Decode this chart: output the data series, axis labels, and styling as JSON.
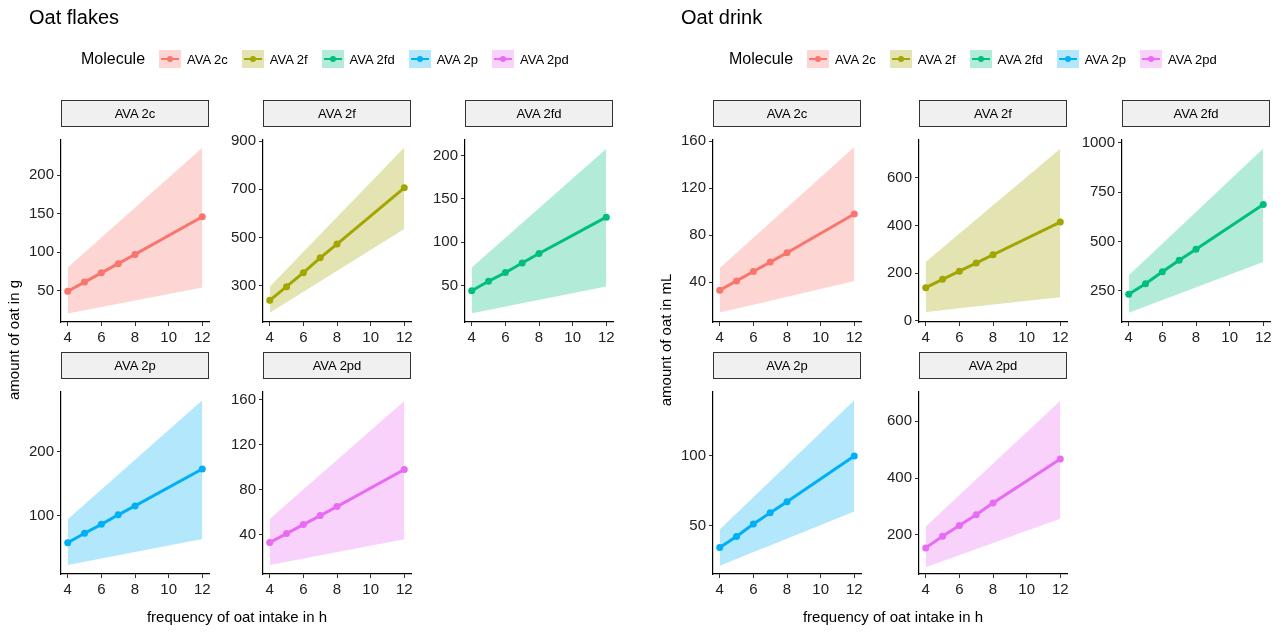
{
  "chart_data": [
    {
      "type": "other",
      "title": "Oat flakes",
      "legend_title": "Molecule",
      "legend": "top left",
      "xlabel": "frequency of oat intake in h",
      "ylabel": "amount of oat in g",
      "series": [
        {
          "name": "AVA 2c",
          "color": "#f8766d"
        },
        {
          "name": "AVA 2f",
          "color": "#a3a500"
        },
        {
          "name": "AVA 2fd",
          "color": "#00bf7d"
        },
        {
          "name": "AVA 2p",
          "color": "#00b0f6"
        },
        {
          "name": "AVA 2pd",
          "color": "#e76bf3"
        }
      ]
    },
    {
      "type": "line",
      "title": "AVA 2c",
      "x": [
        4,
        5,
        6,
        7,
        8,
        12
      ],
      "xlim": [
        3.6,
        12.4
      ],
      "xticks": [
        4,
        6,
        8,
        10,
        12
      ],
      "ylim": [
        9,
        246
      ],
      "yticks": [
        50,
        100,
        150,
        200
      ],
      "marker": "circle",
      "legend": false,
      "series": [
        {
          "color": "#f8766d",
          "values": [
            49,
            61,
            73,
            85,
            97,
            146
          ],
          "lower": [
            20,
            null,
            null,
            null,
            null,
            54
          ],
          "upper": [
            80,
            null,
            null,
            null,
            null,
            236
          ]
        }
      ]
    },
    {
      "type": "line",
      "title": "AVA 2f",
      "x": [
        4,
        5,
        6,
        7,
        8,
        12
      ],
      "xlim": [
        3.6,
        12.4
      ],
      "xticks": [
        4,
        6,
        8,
        10,
        12
      ],
      "ylim": [
        148,
        905
      ],
      "yticks": [
        300,
        500,
        700,
        900
      ],
      "marker": "circle",
      "legend": false,
      "series": [
        {
          "color": "#a3a500",
          "values": [
            238,
            295,
            353,
            415,
            472,
            706
          ],
          "lower": [
            186,
            null,
            null,
            null,
            null,
            535
          ],
          "upper": [
            295,
            null,
            null,
            null,
            null,
            874
          ]
        }
      ]
    },
    {
      "type": "line",
      "title": "AVA 2fd",
      "x": [
        4,
        5,
        6,
        7,
        8,
        12
      ],
      "xlim": [
        3.6,
        12.4
      ],
      "xticks": [
        4,
        6,
        8,
        10,
        12
      ],
      "ylim": [
        8,
        218
      ],
      "yticks": [
        50,
        100,
        150,
        200
      ],
      "marker": "circle",
      "legend": false,
      "series": [
        {
          "color": "#00bf7d",
          "values": [
            44,
            55,
            65,
            76,
            87,
            129
          ],
          "lower": [
            18,
            null,
            null,
            null,
            null,
            49
          ],
          "upper": [
            71,
            null,
            null,
            null,
            null,
            208
          ]
        }
      ]
    },
    {
      "type": "line",
      "title": "AVA 2p",
      "x": [
        4,
        5,
        6,
        7,
        8,
        12
      ],
      "xlim": [
        3.6,
        12.4
      ],
      "xticks": [
        4,
        6,
        8,
        10,
        12
      ],
      "ylim": [
        8,
        294
      ],
      "yticks": [
        100,
        200
      ],
      "marker": "circle",
      "legend": false,
      "series": [
        {
          "color": "#00b0f6",
          "values": [
            57,
            72,
            86,
            101,
            115,
            173
          ],
          "lower": [
            22,
            null,
            null,
            null,
            null,
            63
          ],
          "upper": [
            94,
            null,
            null,
            null,
            null,
            281
          ]
        }
      ]
    },
    {
      "type": "line",
      "title": "AVA 2pd",
      "x": [
        4,
        5,
        6,
        7,
        8,
        12
      ],
      "xlim": [
        3.6,
        12.4
      ],
      "xticks": [
        4,
        6,
        8,
        10,
        12
      ],
      "ylim": [
        5,
        167
      ],
      "yticks": [
        40,
        80,
        120,
        160
      ],
      "marker": "circle",
      "legend": false,
      "series": [
        {
          "color": "#e76bf3",
          "values": [
            33,
            41,
            49,
            57,
            65,
            98
          ],
          "lower": [
            13,
            null,
            null,
            null,
            null,
            36
          ],
          "upper": [
            54,
            null,
            null,
            null,
            null,
            159
          ]
        }
      ]
    },
    {
      "type": "other",
      "title": "Oat drink",
      "legend_title": "Molecule",
      "legend": "top left",
      "xlabel": "frequency of oat intake in h",
      "ylabel": "amount of oat in mL",
      "series": [
        {
          "name": "AVA 2c",
          "color": "#f8766d"
        },
        {
          "name": "AVA 2f",
          "color": "#a3a500"
        },
        {
          "name": "AVA 2fd",
          "color": "#00bf7d"
        },
        {
          "name": "AVA 2p",
          "color": "#00b0f6"
        },
        {
          "name": "AVA 2pd",
          "color": "#e76bf3"
        }
      ]
    },
    {
      "type": "line",
      "title": "AVA 2c",
      "x": [
        4,
        5,
        6,
        7,
        8,
        12
      ],
      "xlim": [
        3.6,
        12.4
      ],
      "xticks": [
        4,
        6,
        8,
        10,
        12
      ],
      "ylim": [
        6,
        161
      ],
      "yticks": [
        40,
        80,
        120,
        160
      ],
      "marker": "circle",
      "legend": false,
      "series": [
        {
          "color": "#f8766d",
          "values": [
            33,
            41,
            49,
            57,
            65,
            98
          ],
          "lower": [
            14,
            null,
            null,
            null,
            null,
            41
          ],
          "upper": [
            52,
            null,
            null,
            null,
            null,
            155
          ]
        }
      ]
    },
    {
      "type": "line",
      "title": "AVA 2f",
      "x": [
        4,
        5,
        6,
        7,
        8,
        12
      ],
      "xlim": [
        3.6,
        12.4
      ],
      "xticks": [
        4,
        6,
        8,
        10,
        12
      ],
      "ylim": [
        -5,
        758
      ],
      "yticks": [
        0,
        200,
        400,
        600
      ],
      "marker": "circle",
      "legend": false,
      "series": [
        {
          "color": "#a3a500",
          "values": [
            139,
            174,
            208,
            242,
            277,
            414
          ],
          "lower": [
            37,
            null,
            null,
            null,
            null,
            99
          ],
          "upper": [
            247,
            null,
            null,
            null,
            null,
            721
          ]
        }
      ]
    },
    {
      "type": "line",
      "title": "AVA 2fd",
      "x": [
        4,
        5,
        6,
        7,
        8,
        12
      ],
      "xlim": [
        3.6,
        12.4
      ],
      "xticks": [
        4,
        6,
        8,
        10,
        12
      ],
      "ylim": [
        93,
        1014
      ],
      "yticks": [
        250,
        500,
        750,
        1000
      ],
      "marker": "circle",
      "legend": false,
      "series": [
        {
          "color": "#00bf7d",
          "values": [
            233,
            287,
            347,
            405,
            461,
            688
          ],
          "lower": [
            140,
            null,
            null,
            null,
            null,
            397
          ],
          "upper": [
            329,
            null,
            null,
            null,
            null,
            971
          ]
        }
      ]
    },
    {
      "type": "line",
      "title": "AVA 2p",
      "x": [
        4,
        5,
        6,
        7,
        8,
        12
      ],
      "xlim": [
        3.6,
        12.4
      ],
      "xticks": [
        4,
        6,
        8,
        10,
        12
      ],
      "ylim": [
        15,
        146
      ],
      "yticks": [
        50,
        100
      ],
      "marker": "circle",
      "legend": false,
      "series": [
        {
          "color": "#00b0f6",
          "values": [
            34,
            42,
            51,
            59,
            67,
            100
          ],
          "lower": [
            21,
            null,
            null,
            null,
            null,
            60
          ],
          "upper": [
            47,
            null,
            null,
            null,
            null,
            140
          ]
        }
      ]
    },
    {
      "type": "line",
      "title": "AVA 2pd",
      "x": [
        4,
        5,
        6,
        7,
        8,
        12
      ],
      "xlim": [
        3.6,
        12.4
      ],
      "xticks": [
        4,
        6,
        8,
        10,
        12
      ],
      "ylim": [
        62,
        703
      ],
      "yticks": [
        200,
        400,
        600
      ],
      "marker": "circle",
      "legend": false,
      "series": [
        {
          "color": "#e76bf3",
          "values": [
            154,
            195,
            233,
            271,
            312,
            467
          ],
          "lower": [
            86,
            null,
            null,
            null,
            null,
            257
          ],
          "upper": [
            229,
            null,
            null,
            null,
            null,
            672
          ]
        }
      ]
    }
  ]
}
